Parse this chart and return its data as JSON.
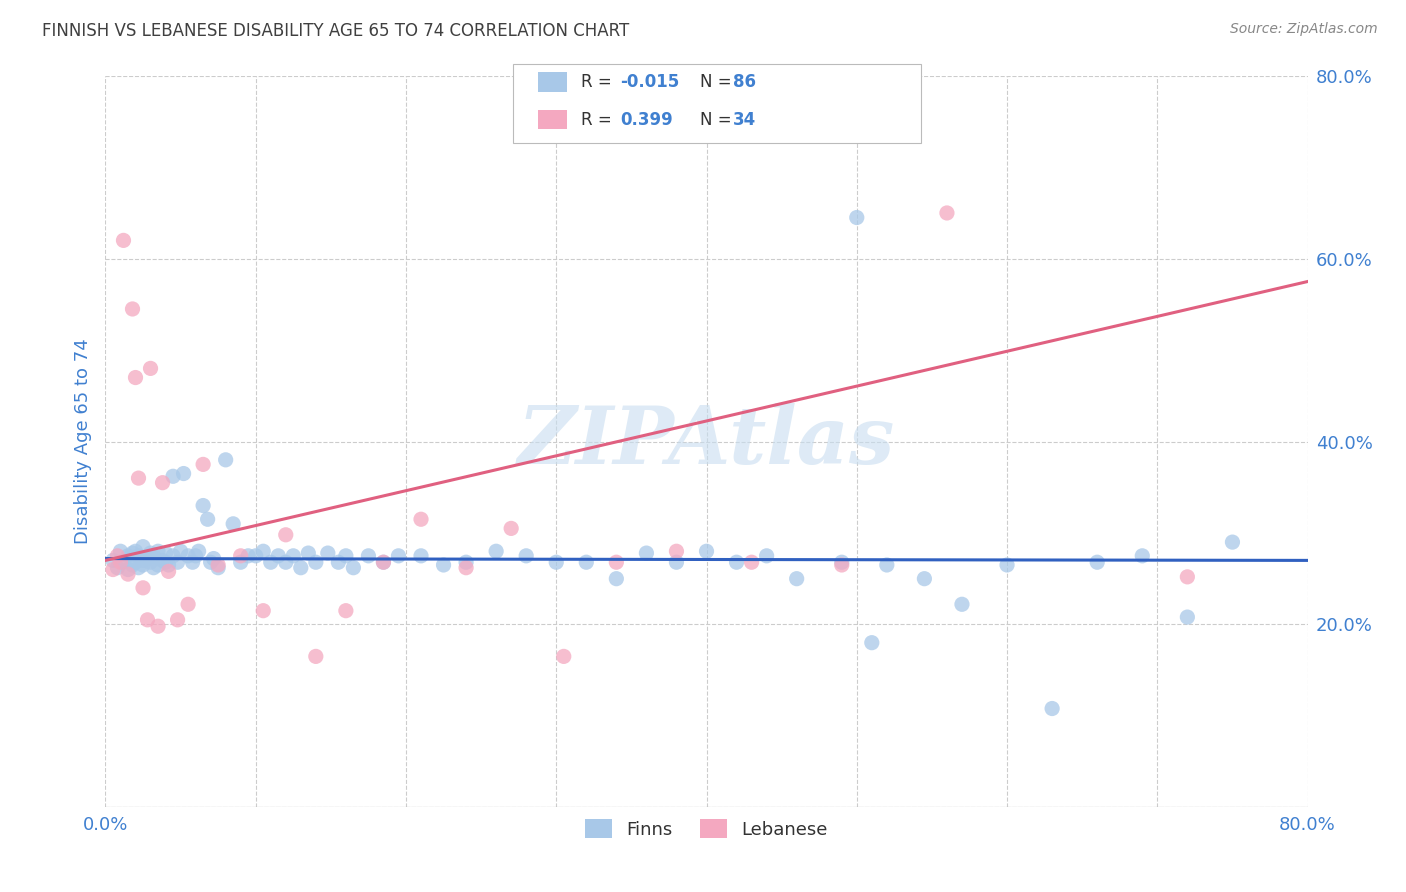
{
  "title": "FINNISH VS LEBANESE DISABILITY AGE 65 TO 74 CORRELATION CHART",
  "source": "Source: ZipAtlas.com",
  "ylabel": "Disability Age 65 to 74",
  "xlim": [
    0.0,
    0.8
  ],
  "ylim": [
    0.0,
    0.8
  ],
  "x_ticks": [
    0.0,
    0.1,
    0.2,
    0.3,
    0.4,
    0.5,
    0.6,
    0.7,
    0.8
  ],
  "y_ticks": [
    0.0,
    0.2,
    0.4,
    0.6,
    0.8
  ],
  "legend_labels": [
    "Finns",
    "Lebanese"
  ],
  "finn_color": "#a8c8e8",
  "lebanese_color": "#f4a8c0",
  "finn_line_color": "#3060c0",
  "lebanese_line_color": "#e06080",
  "finn_R": -0.015,
  "finn_N": 86,
  "lebanese_R": 0.399,
  "lebanese_N": 34,
  "watermark": "ZIPAtlas",
  "background_color": "#ffffff",
  "grid_color": "#cccccc",
  "title_color": "#404040",
  "tick_color": "#4080d0",
  "finn_line_y0": 0.272,
  "finn_line_y1": 0.27,
  "leb_line_y0": 0.27,
  "leb_line_y1": 0.575,
  "finn_scatter_x": [
    0.005,
    0.008,
    0.01,
    0.012,
    0.015,
    0.015,
    0.018,
    0.018,
    0.02,
    0.02,
    0.022,
    0.022,
    0.025,
    0.025,
    0.025,
    0.028,
    0.03,
    0.03,
    0.032,
    0.032,
    0.035,
    0.035,
    0.038,
    0.04,
    0.04,
    0.042,
    0.045,
    0.045,
    0.048,
    0.05,
    0.052,
    0.055,
    0.058,
    0.06,
    0.062,
    0.065,
    0.068,
    0.07,
    0.072,
    0.075,
    0.08,
    0.085,
    0.09,
    0.095,
    0.1,
    0.105,
    0.11,
    0.115,
    0.12,
    0.125,
    0.13,
    0.135,
    0.14,
    0.148,
    0.155,
    0.16,
    0.165,
    0.175,
    0.185,
    0.195,
    0.21,
    0.225,
    0.24,
    0.26,
    0.28,
    0.3,
    0.32,
    0.34,
    0.36,
    0.38,
    0.4,
    0.42,
    0.44,
    0.46,
    0.49,
    0.51,
    0.52,
    0.545,
    0.57,
    0.6,
    0.63,
    0.66,
    0.69,
    0.72,
    0.75,
    0.5
  ],
  "finn_scatter_y": [
    0.27,
    0.262,
    0.28,
    0.268,
    0.26,
    0.275,
    0.265,
    0.278,
    0.268,
    0.28,
    0.275,
    0.262,
    0.27,
    0.265,
    0.285,
    0.272,
    0.268,
    0.278,
    0.262,
    0.275,
    0.265,
    0.28,
    0.27,
    0.268,
    0.278,
    0.265,
    0.362,
    0.275,
    0.268,
    0.28,
    0.365,
    0.275,
    0.268,
    0.275,
    0.28,
    0.33,
    0.315,
    0.268,
    0.272,
    0.262,
    0.38,
    0.31,
    0.268,
    0.275,
    0.275,
    0.28,
    0.268,
    0.275,
    0.268,
    0.275,
    0.262,
    0.278,
    0.268,
    0.278,
    0.268,
    0.275,
    0.262,
    0.275,
    0.268,
    0.275,
    0.275,
    0.265,
    0.268,
    0.28,
    0.275,
    0.268,
    0.268,
    0.25,
    0.278,
    0.268,
    0.28,
    0.268,
    0.275,
    0.25,
    0.268,
    0.18,
    0.265,
    0.25,
    0.222,
    0.265,
    0.108,
    0.268,
    0.275,
    0.208,
    0.29,
    0.645
  ],
  "lebanese_scatter_x": [
    0.005,
    0.008,
    0.01,
    0.012,
    0.015,
    0.018,
    0.02,
    0.022,
    0.025,
    0.028,
    0.03,
    0.035,
    0.038,
    0.042,
    0.048,
    0.055,
    0.065,
    0.075,
    0.09,
    0.105,
    0.12,
    0.14,
    0.16,
    0.185,
    0.21,
    0.24,
    0.27,
    0.305,
    0.34,
    0.38,
    0.43,
    0.49,
    0.56,
    0.72
  ],
  "lebanese_scatter_y": [
    0.26,
    0.275,
    0.268,
    0.62,
    0.255,
    0.545,
    0.47,
    0.36,
    0.24,
    0.205,
    0.48,
    0.198,
    0.355,
    0.258,
    0.205,
    0.222,
    0.375,
    0.265,
    0.275,
    0.215,
    0.298,
    0.165,
    0.215,
    0.268,
    0.315,
    0.262,
    0.305,
    0.165,
    0.268,
    0.28,
    0.268,
    0.265,
    0.65,
    0.252
  ]
}
